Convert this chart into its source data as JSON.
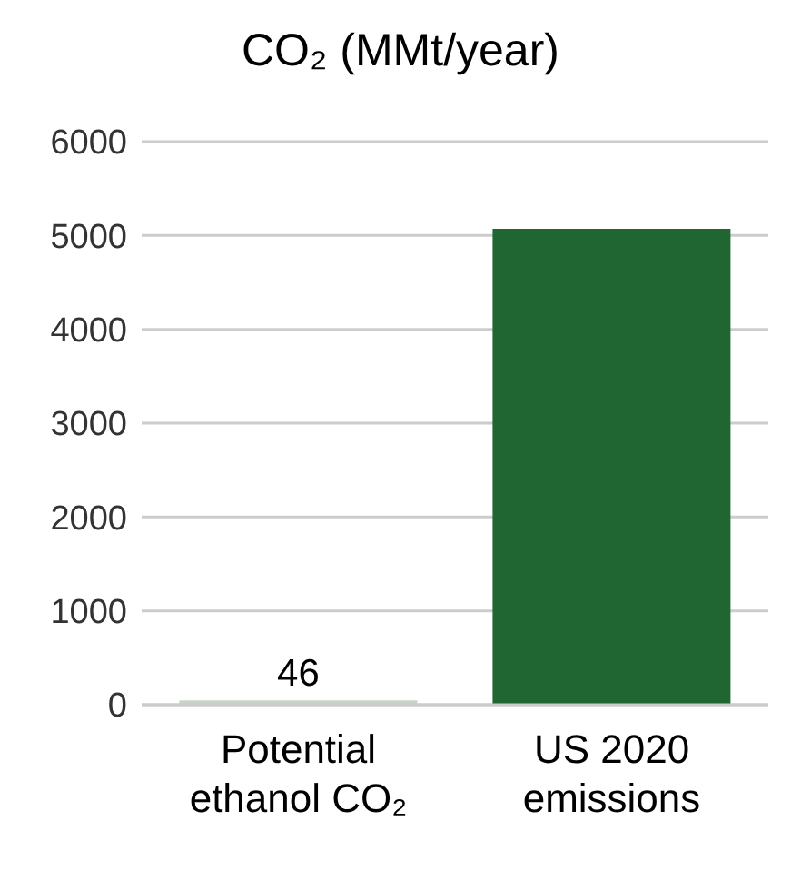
{
  "chart_data": {
    "type": "bar",
    "title": "CO₂ (MMt/year)",
    "categories": [
      "Potential ethanol CO₂",
      "US 2020 emissions"
    ],
    "values": [
      46,
      5070
    ],
    "colors": [
      "#c9d3c9",
      "#1f6632"
    ],
    "value_labels": [
      "46",
      null
    ],
    "ylim": [
      0,
      6000
    ],
    "yticks": [
      0,
      1000,
      2000,
      3000,
      4000,
      5000,
      6000
    ],
    "grid": "y"
  }
}
